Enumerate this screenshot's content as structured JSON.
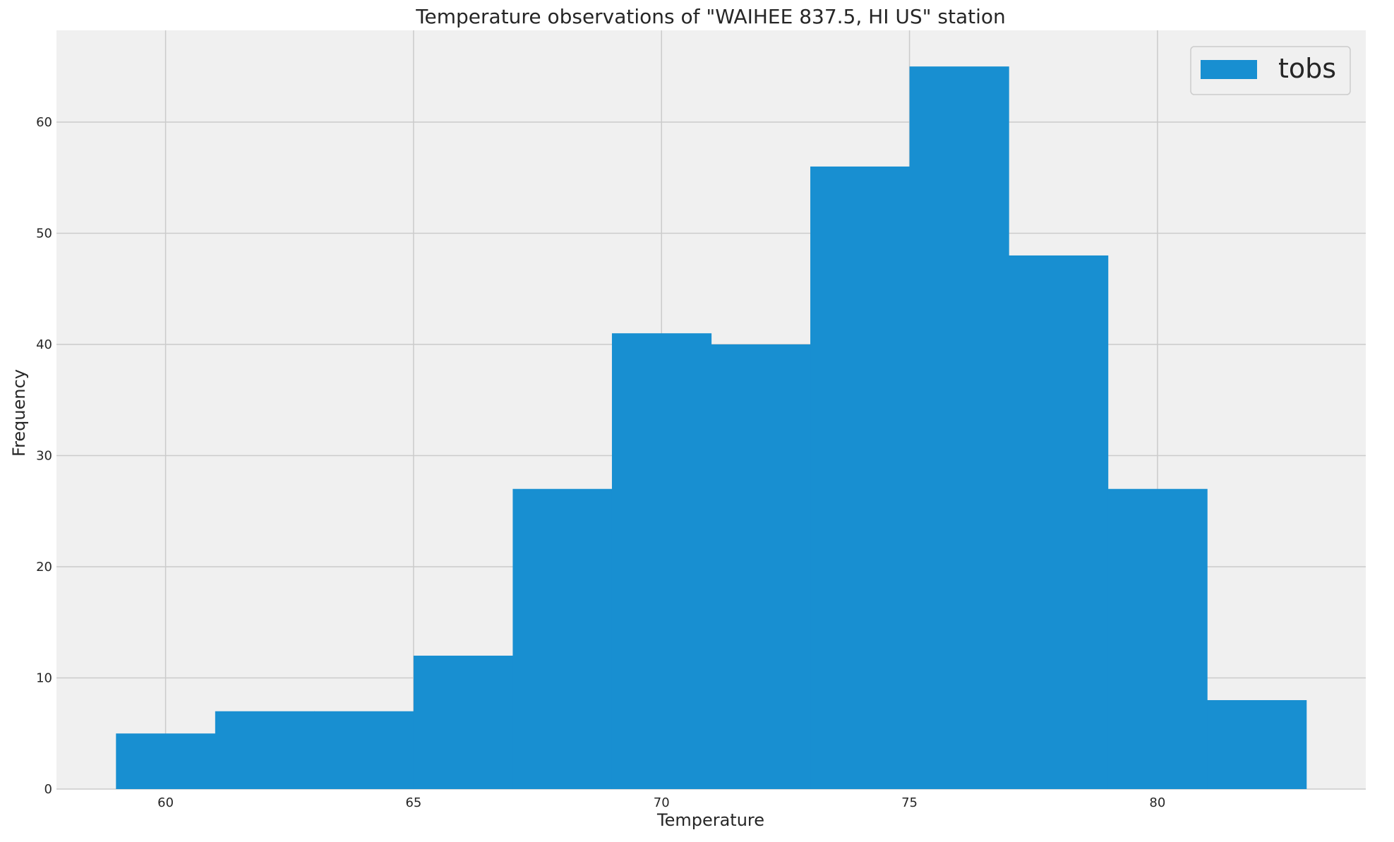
{
  "chart_data": {
    "type": "bar",
    "title": "Temperature observations of \"WAIHEE 837.5, HI US\" station",
    "xlabel": "Temperature",
    "ylabel": "Frequency",
    "xlim": [
      57.8,
      84.2
    ],
    "ylim": [
      0,
      68.25
    ],
    "xticks": [
      60,
      65,
      70,
      75,
      80
    ],
    "yticks": [
      0,
      10,
      20,
      30,
      40,
      50,
      60
    ],
    "grid": true,
    "legend": {
      "position": "top-right",
      "entries": [
        "tobs"
      ]
    },
    "series": [
      {
        "name": "tobs",
        "color": "#188fd1",
        "bins": [
          {
            "start": 59,
            "end": 61,
            "value": 5
          },
          {
            "start": 61,
            "end": 63,
            "value": 7
          },
          {
            "start": 63,
            "end": 65,
            "value": 7
          },
          {
            "start": 65,
            "end": 67,
            "value": 12
          },
          {
            "start": 67,
            "end": 69,
            "value": 27
          },
          {
            "start": 69,
            "end": 71,
            "value": 41
          },
          {
            "start": 71,
            "end": 73,
            "value": 40
          },
          {
            "start": 73,
            "end": 75,
            "value": 56
          },
          {
            "start": 75,
            "end": 77,
            "value": 65
          },
          {
            "start": 77,
            "end": 79,
            "value": 48
          },
          {
            "start": 79,
            "end": 81,
            "value": 27
          },
          {
            "start": 81,
            "end": 83,
            "value": 8
          }
        ]
      }
    ],
    "colors": {
      "plot_background": "#f0f0f0",
      "grid": "#cbcbcb",
      "bar": "#188fd1"
    }
  }
}
